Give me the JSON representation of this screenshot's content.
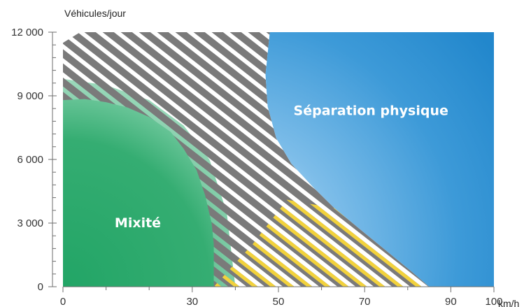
{
  "chart_data": {
    "type": "area",
    "title": "",
    "ylabel": "Véhicules/jour",
    "xlabel": "km/h",
    "xlim": [
      0,
      100
    ],
    "ylim": [
      0,
      12000
    ],
    "x_ticks": [
      {
        "value": 0,
        "label": "0"
      },
      {
        "value": 30,
        "label": "30"
      },
      {
        "value": 50,
        "label": "50"
      },
      {
        "value": 70,
        "label": "70"
      },
      {
        "value": 90,
        "label": "90"
      },
      {
        "value": 100,
        "label": "100"
      }
    ],
    "x_minor_ticks": [
      10,
      20,
      40,
      60,
      80
    ],
    "y_ticks": [
      {
        "value": 0,
        "label": "0"
      },
      {
        "value": 3000,
        "label": "3 000"
      },
      {
        "value": 6000,
        "label": "6 000"
      },
      {
        "value": 9000,
        "label": "9 000"
      },
      {
        "value": 12000,
        "label": "12 000"
      }
    ],
    "y_minor_step": 600,
    "zones": [
      {
        "name": "Mixité",
        "color": "#2eaa6e",
        "label_at": {
          "x": 12,
          "y": 2800
        },
        "boundary": [
          [
            0,
            8800
          ],
          [
            5,
            8850
          ],
          [
            10,
            8700
          ],
          [
            15,
            8450
          ],
          [
            20,
            8000
          ],
          [
            25,
            7300
          ],
          [
            28,
            6500
          ],
          [
            31,
            5500
          ],
          [
            33,
            4300
          ],
          [
            34.5,
            3000
          ],
          [
            35,
            2000
          ],
          [
            35,
            0
          ]
        ]
      },
      {
        "name": "Séparation physique",
        "color": "#2e92d4",
        "label_at": {
          "x": 53.5,
          "y": 8100
        },
        "boundary": [
          [
            48,
            12000
          ],
          [
            47,
            10000
          ],
          [
            47.5,
            8500
          ],
          [
            49.5,
            7000
          ],
          [
            53,
            5800
          ],
          [
            58,
            4700
          ],
          [
            63,
            3700
          ],
          [
            69,
            2700
          ],
          [
            75,
            1700
          ],
          [
            81,
            700
          ],
          [
            85,
            0
          ]
        ]
      }
    ],
    "hatched_transition": {
      "color": "#7a7a7a",
      "yellow_hatch_color": "#f2d23c",
      "upper_edge": [
        [
          0,
          11500
        ],
        [
          4,
          12000
        ]
      ],
      "yellow_region": [
        [
          35,
          0
        ],
        [
          85,
          0
        ],
        [
          81,
          700
        ],
        [
          75,
          1700
        ],
        [
          69,
          2700
        ],
        [
          63,
          3700
        ],
        [
          52,
          4100
        ],
        [
          44,
          2000
        ]
      ]
    }
  }
}
